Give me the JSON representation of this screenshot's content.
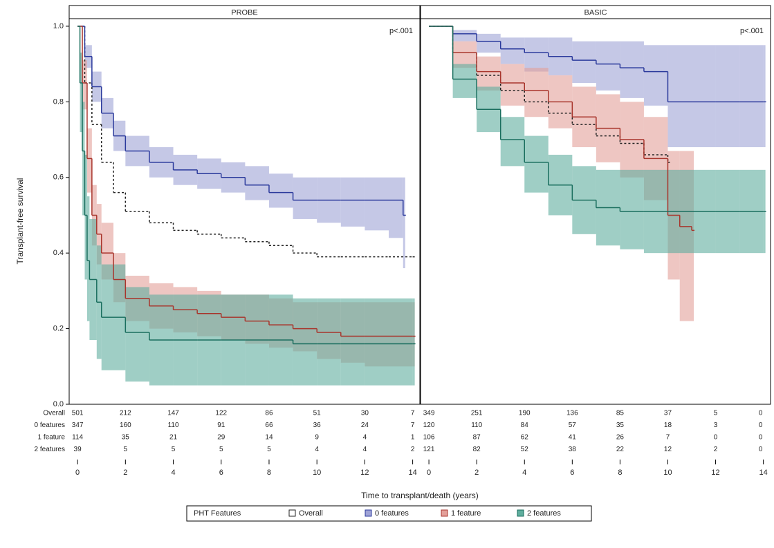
{
  "chart_data": [
    {
      "type": "step",
      "title": "PROBE",
      "annotation": "p<.001",
      "ylabel": "Transplant-free survival",
      "xlim": [
        -0.35,
        14.3
      ],
      "xticks": [
        0,
        2,
        4,
        6,
        8,
        10,
        12,
        14
      ],
      "ylim": [
        0,
        1.02
      ],
      "yticks": [
        {
          "value": 0,
          "label": "0.0"
        },
        0.2,
        0.4,
        0.6,
        0.8,
        {
          "value": 1,
          "label": "1.0"
        }
      ],
      "series": [
        {
          "name": "Overall",
          "color": "#222222",
          "dash": true,
          "x": [
            0,
            0.3,
            0.6,
            1,
            1.5,
            2,
            3,
            4,
            5,
            6,
            7,
            8,
            9,
            10,
            11,
            12,
            13,
            14
          ],
          "values": [
            1,
            0.85,
            0.74,
            0.64,
            0.56,
            0.51,
            0.48,
            0.46,
            0.45,
            0.44,
            0.43,
            0.42,
            0.4,
            0.39,
            0.39,
            0.39,
            0.39,
            0.39
          ]
        },
        {
          "name": "0 features",
          "color": "#2b3a9c",
          "band": "#9fa3d6",
          "x": [
            0,
            0.3,
            0.6,
            1,
            1.5,
            2,
            3,
            4,
            5,
            6,
            7,
            8,
            9,
            10,
            11,
            12,
            13,
            13.6
          ],
          "values": [
            1,
            0.92,
            0.84,
            0.77,
            0.71,
            0.67,
            0.64,
            0.62,
            0.61,
            0.6,
            0.58,
            0.56,
            0.54,
            0.54,
            0.54,
            0.54,
            0.54,
            0.5
          ],
          "ci_lower": [
            1,
            0.89,
            0.8,
            0.73,
            0.67,
            0.63,
            0.6,
            0.58,
            0.57,
            0.56,
            0.54,
            0.52,
            0.49,
            0.48,
            0.47,
            0.46,
            0.44,
            0.36
          ],
          "ci_upper": [
            1,
            0.95,
            0.88,
            0.81,
            0.75,
            0.71,
            0.68,
            0.66,
            0.65,
            0.64,
            0.63,
            0.61,
            0.6,
            0.6,
            0.6,
            0.6,
            0.6,
            0.6
          ]
        },
        {
          "name": "1 feature",
          "color": "#a8352c",
          "band": "#e3a09a",
          "x": [
            0,
            0.2,
            0.4,
            0.6,
            0.8,
            1,
            1.5,
            2,
            3,
            4,
            5,
            6,
            7,
            8,
            9,
            10,
            11,
            12,
            13,
            14
          ],
          "values": [
            1,
            0.85,
            0.65,
            0.5,
            0.45,
            0.4,
            0.33,
            0.28,
            0.26,
            0.25,
            0.24,
            0.23,
            0.22,
            0.21,
            0.2,
            0.19,
            0.18,
            0.18,
            0.18,
            0.18
          ],
          "ci_lower": [
            1,
            0.78,
            0.56,
            0.42,
            0.37,
            0.33,
            0.27,
            0.22,
            0.2,
            0.19,
            0.18,
            0.17,
            0.16,
            0.15,
            0.14,
            0.12,
            0.11,
            0.1,
            0.1,
            0.1
          ],
          "ci_upper": [
            1,
            0.91,
            0.73,
            0.58,
            0.53,
            0.48,
            0.4,
            0.34,
            0.32,
            0.31,
            0.3,
            0.29,
            0.29,
            0.28,
            0.27,
            0.27,
            0.27,
            0.27,
            0.27,
            0.27
          ]
        },
        {
          "name": "2 features",
          "color": "#1a6e5e",
          "band": "#5fae9e",
          "x": [
            0,
            0.1,
            0.2,
            0.3,
            0.4,
            0.5,
            0.8,
            1,
            2,
            3,
            4,
            5,
            6,
            7,
            8,
            9,
            10,
            11,
            12,
            13,
            14
          ],
          "values": [
            1,
            0.85,
            0.67,
            0.5,
            0.38,
            0.33,
            0.27,
            0.23,
            0.19,
            0.17,
            0.17,
            0.17,
            0.17,
            0.17,
            0.17,
            0.16,
            0.16,
            0.16,
            0.16,
            0.16,
            0.16
          ],
          "ci_lower": [
            1,
            0.72,
            0.5,
            0.33,
            0.22,
            0.17,
            0.12,
            0.09,
            0.06,
            0.05,
            0.05,
            0.05,
            0.05,
            0.05,
            0.05,
            0.05,
            0.05,
            0.05,
            0.05,
            0.05,
            0.05
          ],
          "ci_upper": [
            1,
            0.93,
            0.8,
            0.66,
            0.55,
            0.49,
            0.42,
            0.37,
            0.31,
            0.29,
            0.29,
            0.29,
            0.29,
            0.29,
            0.29,
            0.28,
            0.28,
            0.28,
            0.28,
            0.28,
            0.28
          ]
        }
      ],
      "risk_table": [
        [
          501,
          212,
          147,
          122,
          86,
          51,
          30,
          7
        ],
        [
          347,
          160,
          110,
          91,
          66,
          36,
          24,
          7
        ],
        [
          114,
          35,
          21,
          29,
          14,
          9,
          4,
          1
        ],
        [
          39,
          5,
          5,
          5,
          5,
          4,
          4,
          2
        ]
      ]
    },
    {
      "type": "step",
      "title": "BASIC",
      "annotation": "p<.001",
      "xlabel": "Time to transplant/death (years)",
      "legend_title": "PHT Features",
      "xlim": [
        -0.35,
        14.3
      ],
      "xticks": [
        0,
        2,
        4,
        6,
        8,
        10,
        12,
        14
      ],
      "ylim": [
        0,
        1.02
      ],
      "series": [
        {
          "name": "Overall",
          "color": "#222222",
          "dash": true,
          "x": [
            0,
            1,
            2,
            3,
            4,
            5,
            6,
            7,
            8,
            9,
            10
          ],
          "values": [
            1,
            0.93,
            0.87,
            0.83,
            0.8,
            0.77,
            0.74,
            0.71,
            0.69,
            0.66,
            0.64
          ]
        },
        {
          "name": "0 features",
          "color": "#2b3a9c",
          "band": "#9fa3d6",
          "x": [
            0,
            1,
            2,
            3,
            4,
            5,
            6,
            7,
            8,
            9,
            10,
            11,
            12,
            13,
            14
          ],
          "values": [
            1,
            0.98,
            0.96,
            0.94,
            0.93,
            0.92,
            0.91,
            0.9,
            0.89,
            0.88,
            0.8,
            0.8,
            0.8,
            0.8,
            0.8
          ],
          "ci_lower": [
            1,
            0.96,
            0.93,
            0.9,
            0.88,
            0.87,
            0.85,
            0.83,
            0.81,
            0.79,
            0.68,
            0.68,
            0.68,
            0.68,
            0.68
          ],
          "ci_upper": [
            1,
            0.99,
            0.98,
            0.97,
            0.97,
            0.97,
            0.96,
            0.96,
            0.96,
            0.95,
            0.95,
            0.95,
            0.95,
            0.95,
            0.95
          ]
        },
        {
          "name": "1 feature",
          "color": "#a8352c",
          "band": "#e3a09a",
          "x": [
            0,
            1,
            2,
            3,
            4,
            5,
            6,
            7,
            8,
            9,
            10,
            10.5,
            11
          ],
          "values": [
            1,
            0.93,
            0.88,
            0.85,
            0.83,
            0.8,
            0.76,
            0.73,
            0.7,
            0.65,
            0.5,
            0.47,
            0.46
          ],
          "ci_lower": [
            1,
            0.89,
            0.83,
            0.79,
            0.76,
            0.73,
            0.68,
            0.64,
            0.6,
            0.54,
            0.33,
            0.22,
            0.22
          ],
          "ci_upper": [
            1,
            0.96,
            0.92,
            0.9,
            0.89,
            0.87,
            0.84,
            0.82,
            0.8,
            0.76,
            0.67,
            0.67,
            0.67
          ]
        },
        {
          "name": "2 features",
          "color": "#1a6e5e",
          "band": "#5fae9e",
          "x": [
            0,
            1,
            2,
            3,
            4,
            5,
            6,
            7,
            8,
            9,
            10,
            11,
            12,
            13,
            14
          ],
          "values": [
            1,
            0.86,
            0.78,
            0.7,
            0.64,
            0.58,
            0.54,
            0.52,
            0.51,
            0.51,
            0.51,
            0.51,
            0.51,
            0.51,
            0.51
          ],
          "ci_lower": [
            1,
            0.81,
            0.72,
            0.63,
            0.56,
            0.5,
            0.45,
            0.42,
            0.41,
            0.4,
            0.4,
            0.4,
            0.4,
            0.4,
            0.4
          ],
          "ci_upper": [
            1,
            0.9,
            0.84,
            0.76,
            0.71,
            0.66,
            0.63,
            0.62,
            0.62,
            0.62,
            0.62,
            0.62,
            0.62,
            0.62,
            0.62
          ]
        }
      ],
      "risk_table": [
        [
          349,
          251,
          190,
          136,
          85,
          37,
          5,
          0
        ],
        [
          120,
          110,
          84,
          57,
          35,
          18,
          3,
          0
        ],
        [
          106,
          87,
          62,
          41,
          26,
          7,
          0,
          0
        ],
        [
          121,
          82,
          52,
          38,
          22,
          12,
          2,
          0
        ]
      ]
    }
  ]
}
